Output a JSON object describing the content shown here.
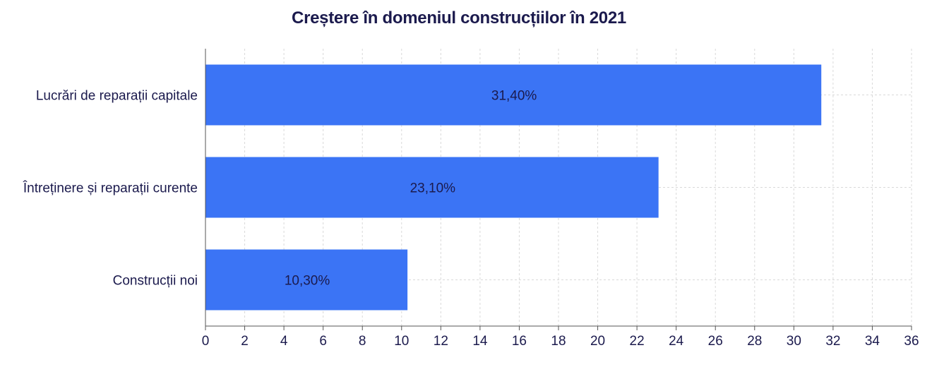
{
  "chart_data": {
    "type": "bar",
    "orientation": "horizontal",
    "title": "Creștere în domeniul construcțiilor în 2021",
    "xlabel": "",
    "ylabel": "",
    "categories": [
      "Lucrări de reparații capitale",
      "Întreținere și reparații curente",
      "Construcții noi"
    ],
    "values": [
      31.4,
      23.1,
      10.3
    ],
    "data_labels": [
      "31,40%",
      "23,10%",
      "10,30%"
    ],
    "xlim": [
      0,
      36
    ],
    "xticks": [
      0,
      2,
      4,
      6,
      8,
      10,
      12,
      14,
      16,
      18,
      20,
      22,
      24,
      26,
      28,
      30,
      32,
      34,
      36
    ],
    "grid": true,
    "legend": "none"
  },
  "colors": {
    "bar": "#3b74f5",
    "title": "#1b1a4d",
    "text": "#1b1a4d",
    "grid": "#d9d9d9",
    "axis": "#555555"
  }
}
